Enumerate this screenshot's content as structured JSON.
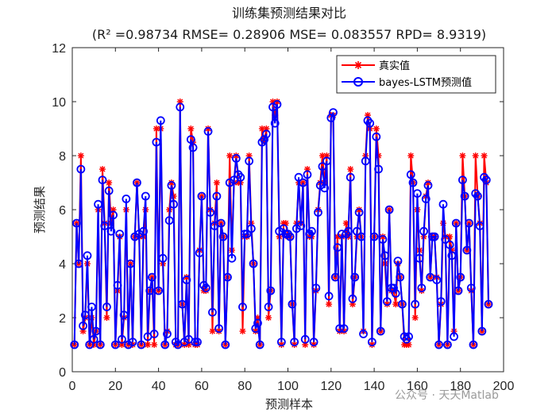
{
  "chart_data": {
    "type": "line",
    "title": "训练集预测结果对比",
    "subtitle": "(R² =0.98734 RMSE= 0.28906 MSE= 0.083557 RPD= 8.9319)",
    "xlabel": "预测样本",
    "ylabel": "预测结果",
    "xlim": [
      0,
      200
    ],
    "ylim": [
      0,
      12
    ],
    "xticks": [
      "0",
      "20",
      "40",
      "60",
      "80",
      "100",
      "120",
      "140",
      "160",
      "180",
      "200"
    ],
    "yticks": [
      "0",
      "2",
      "4",
      "6",
      "8",
      "10",
      "12"
    ],
    "grid": false,
    "legend_position": "top-right",
    "series": [
      {
        "name": "真实值",
        "color": "#ff0000",
        "marker": "asterisk",
        "values": [
          1,
          5.5,
          4,
          8,
          1.5,
          2,
          4,
          1,
          2,
          1,
          1.5,
          6,
          1,
          7.5,
          5.5,
          2,
          7,
          5.5,
          6,
          1,
          3,
          5,
          1,
          2,
          6,
          1,
          4,
          1,
          5,
          7,
          5,
          1,
          5,
          6,
          1,
          3,
          3.5,
          1,
          9,
          3,
          9,
          4,
          1,
          1.5,
          6,
          7,
          6.5,
          1,
          1,
          10,
          2.5,
          1,
          3.5,
          1,
          9,
          8.5,
          1,
          1,
          4.5,
          6.5,
          3,
          3,
          9,
          6,
          1.5,
          5.5,
          7,
          1.5,
          5.5,
          5,
          1,
          3.5,
          8,
          4.5,
          7,
          8,
          7,
          7,
          1.5,
          5,
          5,
          8,
          5.5,
          4,
          1.5,
          2,
          1,
          9,
          8.5,
          9,
          2,
          3,
          10,
          9.5,
          10,
          5,
          1,
          5.5,
          5.5,
          5,
          5,
          2.5,
          1,
          5.5,
          7,
          5.5,
          7,
          1,
          7.5,
          5,
          5,
          1,
          3,
          6,
          7,
          8,
          7,
          8,
          2.5,
          9.5,
          9.5,
          3.5,
          5,
          1.5,
          5,
          1.5,
          5.5,
          5,
          7.5,
          2.5,
          3.5,
          5,
          6,
          5,
          1.5,
          8,
          9.5,
          9,
          1,
          5,
          9,
          8,
          1.5,
          5,
          4,
          2.5,
          6,
          3,
          3,
          2.5,
          4,
          3.5,
          2.5,
          1,
          1,
          1,
          8,
          7,
          2,
          6,
          4.5,
          3,
          5,
          6.5,
          7,
          3.5,
          5,
          5,
          3.5,
          1,
          2.5,
          5.5,
          5,
          1,
          5,
          4.5,
          1.5,
          5.5,
          3,
          3.5,
          8,
          6.5,
          4.5,
          5.5,
          3,
          1,
          8,
          6.5,
          5.5,
          1.5,
          8,
          7,
          2.5
        ],
        "values_note": "pointwise"
      },
      {
        "name": "bayes-LSTM预测值",
        "color": "#0000ff",
        "marker": "circle",
        "values": [
          1,
          5.5,
          4,
          7.5,
          1.7,
          2.1,
          4.3,
          1,
          2.4,
          1.2,
          1.5,
          6.2,
          1,
          7.1,
          5.4,
          2.4,
          6.7,
          5.2,
          5.8,
          1,
          3.2,
          5.1,
          1.2,
          2.1,
          6.4,
          1,
          4,
          1.1,
          5,
          7,
          5.1,
          1,
          5.2,
          6.5,
          1.3,
          3,
          3.5,
          1.4,
          8.5,
          3,
          9.3,
          4.2,
          1,
          1.4,
          5.6,
          6.9,
          6.2,
          1.1,
          1,
          9.8,
          2.5,
          1.1,
          3.4,
          1.2,
          8.6,
          8.3,
          1.1,
          1.1,
          4.4,
          6.5,
          3.2,
          3.1,
          8.9,
          5.9,
          2.2,
          5.4,
          6.5,
          1.6,
          5.5,
          5,
          1,
          3.5,
          7,
          4.2,
          7.1,
          7.9,
          7.3,
          7.2,
          2.4,
          5.1,
          5.1,
          7.8,
          5.3,
          4,
          1.6,
          1.8,
          1,
          8.5,
          8.6,
          8.8,
          2.4,
          3,
          9.8,
          9.2,
          9.9,
          5.2,
          1.1,
          5.3,
          5.1,
          5.1,
          5,
          2.5,
          1.1,
          5.3,
          7.2,
          5.4,
          7,
          1.2,
          7.3,
          5.1,
          5.2,
          1.1,
          3.1,
          5.9,
          6.9,
          7.6,
          6.8,
          7.8,
          2.8,
          9.4,
          9.6,
          3.5,
          4.6,
          1.6,
          5.1,
          1.6,
          5.1,
          5.2,
          7.2,
          2.7,
          3.5,
          5.2,
          5.9,
          5,
          1.4,
          7.8,
          9.3,
          9.2,
          1.1,
          5,
          8.7,
          7.5,
          1.5,
          4.9,
          4.3,
          2.6,
          6,
          3.1,
          3.1,
          2.9,
          4.1,
          3.5,
          2.5,
          1.3,
          1.2,
          1.3,
          7.3,
          7,
          2.5,
          6.6,
          4.2,
          3.1,
          5.2,
          6.4,
          6.9,
          3.5,
          5,
          5,
          3.4,
          1,
          2.6,
          6.2,
          4.9,
          1,
          4.7,
          4.3,
          1.3,
          5.5,
          3,
          3.5,
          7.1,
          6.5,
          4.5,
          5.5,
          3.1,
          1,
          6.6,
          6.5,
          5.4,
          1.5,
          7.2,
          7.1,
          2.5
        ]
      }
    ]
  },
  "watermark": "公众号 · 天天Matlab",
  "colors": {
    "axis": "#262626",
    "background": "#ffffff"
  }
}
